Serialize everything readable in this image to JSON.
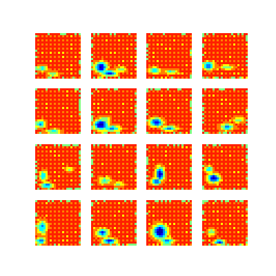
{
  "colors": {
    "background": "#ffffff",
    "colormap": [
      "#0000b0",
      "#0000ff",
      "#0080ff",
      "#00ffff",
      "#80ff80",
      "#ffff00",
      "#ff8000",
      "#ff2000"
    ]
  },
  "grid": {
    "rows": 4,
    "cols": 4
  },
  "tiles": [
    {
      "blobs": [
        {
          "u": 0.15,
          "v": 0.78,
          "ru": 0.12,
          "rv": 0.07,
          "level": 0.4
        },
        {
          "u": 0.4,
          "v": 0.9,
          "ru": 0.14,
          "rv": 0.06,
          "level": 0.5
        }
      ]
    },
    {
      "blobs": [
        {
          "u": 0.22,
          "v": 0.75,
          "ru": 0.14,
          "rv": 0.12,
          "level": 0.1
        },
        {
          "u": 0.4,
          "v": 0.88,
          "ru": 0.18,
          "rv": 0.07,
          "level": 0.2
        },
        {
          "u": 0.65,
          "v": 0.8,
          "ru": 0.15,
          "rv": 0.07,
          "level": 0.55
        }
      ]
    },
    {
      "blobs": [
        {
          "u": 0.18,
          "v": 0.82,
          "ru": 0.14,
          "rv": 0.07,
          "level": 0.35
        },
        {
          "u": 0.55,
          "v": 0.85,
          "ru": 0.16,
          "rv": 0.06,
          "level": 0.5
        }
      ]
    },
    {
      "blobs": [
        {
          "u": 0.14,
          "v": 0.72,
          "ru": 0.12,
          "rv": 0.1,
          "level": 0.2
        },
        {
          "u": 0.55,
          "v": 0.75,
          "ru": 0.16,
          "rv": 0.06,
          "level": 0.5
        }
      ]
    },
    {
      "blobs": [
        {
          "u": 0.12,
          "v": 0.78,
          "ru": 0.11,
          "rv": 0.09,
          "level": 0.3
        },
        {
          "u": 0.4,
          "v": 0.95,
          "ru": 0.2,
          "rv": 0.05,
          "level": 0.45
        }
      ]
    },
    {
      "blobs": [
        {
          "u": 0.22,
          "v": 0.8,
          "ru": 0.16,
          "rv": 0.12,
          "level": 0.05
        },
        {
          "u": 0.45,
          "v": 0.88,
          "ru": 0.2,
          "rv": 0.07,
          "level": 0.3
        },
        {
          "u": 0.3,
          "v": 0.68,
          "ru": 0.12,
          "rv": 0.07,
          "level": 0.45
        }
      ]
    },
    {
      "blobs": [
        {
          "u": 0.22,
          "v": 0.75,
          "ru": 0.15,
          "rv": 0.1,
          "level": 0.15
        },
        {
          "u": 0.5,
          "v": 0.88,
          "ru": 0.18,
          "rv": 0.06,
          "level": 0.35
        }
      ]
    },
    {
      "blobs": [
        {
          "u": 0.55,
          "v": 0.85,
          "ru": 0.15,
          "rv": 0.08,
          "level": 0.35
        },
        {
          "u": 0.8,
          "v": 0.7,
          "ru": 0.12,
          "rv": 0.07,
          "level": 0.5
        }
      ]
    },
    {
      "blobs": [
        {
          "u": 0.18,
          "v": 0.7,
          "ru": 0.09,
          "rv": 0.12,
          "level": 0.35
        },
        {
          "u": 0.25,
          "v": 0.9,
          "ru": 0.14,
          "rv": 0.06,
          "level": 0.25
        },
        {
          "u": 0.75,
          "v": 0.55,
          "ru": 0.1,
          "rv": 0.06,
          "level": 0.55
        }
      ]
    },
    {
      "blobs": [
        {
          "u": 0.3,
          "v": 0.8,
          "ru": 0.14,
          "rv": 0.08,
          "level": 0.45
        },
        {
          "u": 0.6,
          "v": 0.88,
          "ru": 0.14,
          "rv": 0.06,
          "level": 0.55
        }
      ]
    },
    {
      "blobs": [
        {
          "u": 0.3,
          "v": 0.65,
          "ru": 0.1,
          "rv": 0.16,
          "level": 0.12
        },
        {
          "u": 0.22,
          "v": 0.82,
          "ru": 0.12,
          "rv": 0.08,
          "level": 0.25
        }
      ]
    },
    {
      "blobs": [
        {
          "u": 0.25,
          "v": 0.75,
          "ru": 0.14,
          "rv": 0.1,
          "level": 0.08
        },
        {
          "u": 0.15,
          "v": 0.55,
          "ru": 0.1,
          "rv": 0.08,
          "level": 0.4
        }
      ]
    },
    {
      "blobs": [
        {
          "u": 0.15,
          "v": 0.6,
          "ru": 0.12,
          "rv": 0.16,
          "level": 0.35
        },
        {
          "u": 0.12,
          "v": 0.9,
          "ru": 0.12,
          "rv": 0.08,
          "level": 0.3
        }
      ]
    },
    {
      "blobs": [
        {
          "u": 0.25,
          "v": 0.72,
          "ru": 0.14,
          "rv": 0.1,
          "level": 0.25
        },
        {
          "u": 0.4,
          "v": 0.9,
          "ru": 0.16,
          "rv": 0.07,
          "level": 0.2
        }
      ]
    },
    {
      "blobs": [
        {
          "u": 0.3,
          "v": 0.7,
          "ru": 0.16,
          "rv": 0.16,
          "level": 0.02
        },
        {
          "u": 0.45,
          "v": 0.9,
          "ru": 0.16,
          "rv": 0.06,
          "level": 0.3
        }
      ]
    },
    {
      "blobs": [
        {
          "u": 0.38,
          "v": 0.92,
          "ru": 0.12,
          "rv": 0.06,
          "level": 0.2
        },
        {
          "u": 0.2,
          "v": 0.7,
          "ru": 0.1,
          "rv": 0.08,
          "level": 0.5
        }
      ]
    }
  ]
}
